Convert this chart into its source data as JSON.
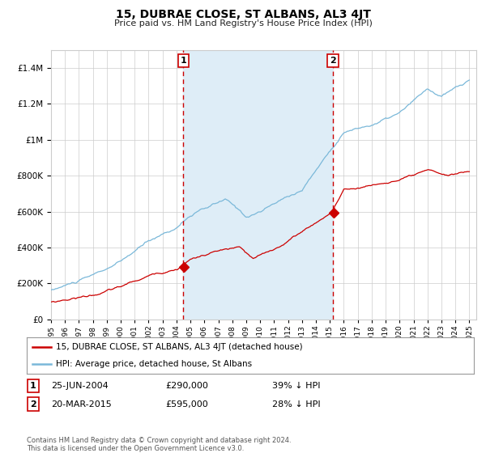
{
  "title": "15, DUBRAE CLOSE, ST ALBANS, AL3 4JT",
  "subtitle": "Price paid vs. HM Land Registry's House Price Index (HPI)",
  "legend_line1": "15, DUBRAE CLOSE, ST ALBANS, AL3 4JT (detached house)",
  "legend_line2": "HPI: Average price, detached house, St Albans",
  "annotation1_label": "1",
  "annotation1_date": "25-JUN-2004",
  "annotation1_price": "£290,000",
  "annotation1_hpi": "39% ↓ HPI",
  "annotation2_label": "2",
  "annotation2_date": "20-MAR-2015",
  "annotation2_price": "£595,000",
  "annotation2_hpi": "28% ↓ HPI",
  "footer": "Contains HM Land Registry data © Crown copyright and database right 2024.\nThis data is licensed under the Open Government Licence v3.0.",
  "hpi_color": "#7ab8d9",
  "price_color": "#cc0000",
  "shade_color": "#deedf7",
  "vline_color": "#cc0000",
  "grid_color": "#cccccc",
  "ylim": [
    0,
    1500000
  ],
  "year_start": 1995,
  "year_end": 2025,
  "sale1_year": 2004.48,
  "sale2_year": 2015.22,
  "sale1_price": 290000,
  "sale2_price": 595000
}
